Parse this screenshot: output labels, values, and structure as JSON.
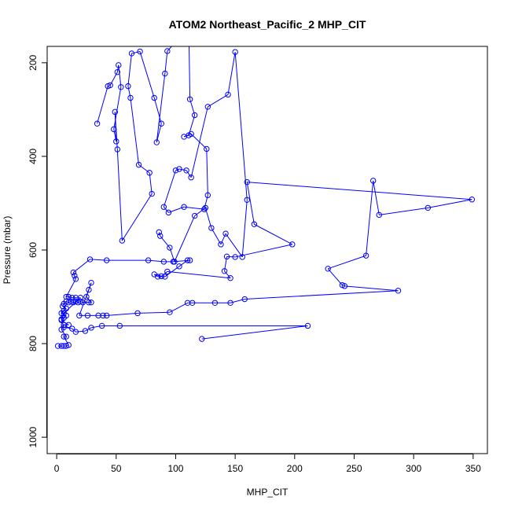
{
  "chart_data": {
    "type": "line",
    "title": "ATOM2 Northeast_Pacific_2 MHP_CIT",
    "xlabel": "MHP_CIT",
    "ylabel": "Pressure (mbar)",
    "xlim": [
      -8,
      362
    ],
    "ylim": [
      1035,
      165
    ],
    "y_reversed": true,
    "x_ticks": [
      0,
      50,
      100,
      150,
      200,
      250,
      300,
      350
    ],
    "y_ticks": [
      200,
      400,
      600,
      800,
      1000
    ],
    "marker": "open-circle",
    "color": "#0000ff",
    "series": [
      {
        "points": [
          [
            1,
            805
          ],
          [
            4,
            805
          ],
          [
            6,
            805
          ],
          [
            8,
            805
          ],
          [
            10,
            803
          ],
          [
            6,
            785
          ],
          [
            8,
            785
          ],
          [
            4,
            770
          ],
          [
            6,
            760
          ],
          [
            10,
            760
          ],
          [
            4,
            750
          ],
          [
            6,
            745
          ],
          [
            8,
            740
          ],
          [
            4,
            735
          ],
          [
            6,
            730
          ],
          [
            8,
            725
          ],
          [
            5,
            720
          ],
          [
            6,
            715
          ],
          [
            8,
            710
          ],
          [
            10,
            712
          ],
          [
            12,
            710
          ],
          [
            14,
            712
          ],
          [
            16,
            710
          ],
          [
            18,
            712
          ],
          [
            20,
            710
          ],
          [
            22,
            712
          ],
          [
            27,
            712
          ],
          [
            29,
            712
          ],
          [
            25,
            700
          ],
          [
            27,
            685
          ],
          [
            29,
            670
          ],
          [
            19,
            740
          ],
          [
            26,
            740
          ],
          [
            35,
            740
          ],
          [
            39,
            740
          ],
          [
            42,
            740
          ],
          [
            68,
            735
          ],
          [
            95,
            733
          ],
          [
            110,
            713
          ],
          [
            114,
            713
          ],
          [
            133,
            713
          ],
          [
            146,
            713
          ],
          [
            158,
            705
          ],
          [
            287,
            687
          ],
          [
            242,
            677
          ],
          [
            240,
            675
          ],
          [
            228,
            640
          ],
          [
            260,
            612
          ],
          [
            266,
            452
          ],
          [
            271,
            525
          ],
          [
            312,
            510
          ],
          [
            349,
            492
          ],
          [
            160,
            455
          ],
          [
            166,
            545
          ],
          [
            198,
            588
          ],
          [
            150,
            615
          ],
          [
            143,
            614
          ],
          [
            141,
            645
          ],
          [
            146,
            660
          ],
          [
            93,
            646
          ],
          [
            88,
            656
          ],
          [
            82,
            652
          ],
          [
            85,
            657
          ],
          [
            91,
            657
          ],
          [
            103,
            635
          ],
          [
            110,
            622
          ],
          [
            112,
            622
          ],
          [
            98,
            625
          ],
          [
            90,
            625
          ],
          [
            77,
            622
          ],
          [
            42,
            622
          ],
          [
            28,
            620
          ],
          [
            14,
            648
          ],
          [
            15,
            655
          ],
          [
            16,
            662
          ],
          [
            8,
            700
          ],
          [
            10,
            700
          ],
          [
            13,
            702
          ],
          [
            16,
            702
          ],
          [
            20,
            702
          ],
          [
            6,
            735
          ],
          [
            4,
            748
          ],
          [
            6,
            765
          ],
          [
            13,
            768
          ],
          [
            16,
            775
          ],
          [
            24,
            773
          ],
          [
            29,
            766
          ],
          [
            38,
            762
          ],
          [
            53,
            762
          ],
          [
            211,
            762
          ],
          [
            122,
            790
          ]
        ]
      },
      {
        "points": [
          [
            34,
            330
          ],
          [
            43,
            250
          ],
          [
            45,
            248
          ],
          [
            51,
            220
          ],
          [
            52,
            205
          ],
          [
            54,
            252
          ],
          [
            48,
            342
          ],
          [
            50,
            368
          ],
          [
            49,
            305
          ],
          [
            51,
            385
          ],
          [
            55,
            580
          ],
          [
            80,
            480
          ],
          [
            78,
            435
          ],
          [
            69,
            418
          ],
          [
            62,
            275
          ],
          [
            60,
            250
          ],
          [
            63,
            180
          ],
          [
            70,
            176
          ],
          [
            82,
            275
          ],
          [
            88,
            330
          ],
          [
            84,
            370
          ],
          [
            91,
            223
          ],
          [
            93,
            175
          ],
          [
            111,
            125
          ],
          [
            112,
            278
          ],
          [
            116,
            312
          ],
          [
            111,
            355
          ],
          [
            107,
            358
          ],
          [
            113,
            352
          ],
          [
            126,
            384
          ],
          [
            127,
            483
          ],
          [
            124,
            513
          ],
          [
            107,
            508
          ],
          [
            94,
            520
          ],
          [
            90,
            508
          ],
          [
            100,
            430
          ],
          [
            103,
            427
          ],
          [
            109,
            430
          ],
          [
            113,
            445
          ],
          [
            127,
            294
          ],
          [
            144,
            268
          ],
          [
            150,
            177
          ],
          [
            160,
            493
          ],
          [
            156,
            615
          ],
          [
            142,
            565
          ],
          [
            138,
            588
          ],
          [
            130,
            553
          ],
          [
            125,
            510
          ],
          [
            116,
            527
          ],
          [
            99,
            625
          ],
          [
            95,
            595
          ],
          [
            87,
            570
          ],
          [
            86,
            562
          ]
        ]
      }
    ]
  }
}
